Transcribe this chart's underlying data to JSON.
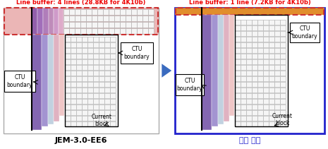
{
  "left_title": "JEM-3.0-EE6",
  "right_title": "제안 방법",
  "left_buffer_text": "Line buffer: 4 lines (28.8KB for 4K10b)",
  "right_buffer_text": "Line buffer: 1 line (7.2KB for 4K10b)",
  "buffer_text_color": "#ee0000",
  "left_box_border": "#aaaaaa",
  "right_box_border": "#2222cc",
  "arrow_color": "#3a6bbf",
  "ctu_label": "CTU\nboundary",
  "current_block_label": "Current\nblock",
  "col_dark_purple": "#7755aa",
  "col_mid_purple": "#aa88bb",
  "col_light_purple": "#cc99bb",
  "col_blue_purple": "#9999cc",
  "col_cyan": "#88bbcc",
  "col_pink": "#dda0a0",
  "col_light_pink": "#f0c0c0",
  "col_red_buf": "#cc3333",
  "col_pink_buf": "#e8aaaa",
  "col_orange_buf": "#e08820",
  "col_grid_bg": "#f5f5f5",
  "col_grid_line": "#aaaaaa"
}
